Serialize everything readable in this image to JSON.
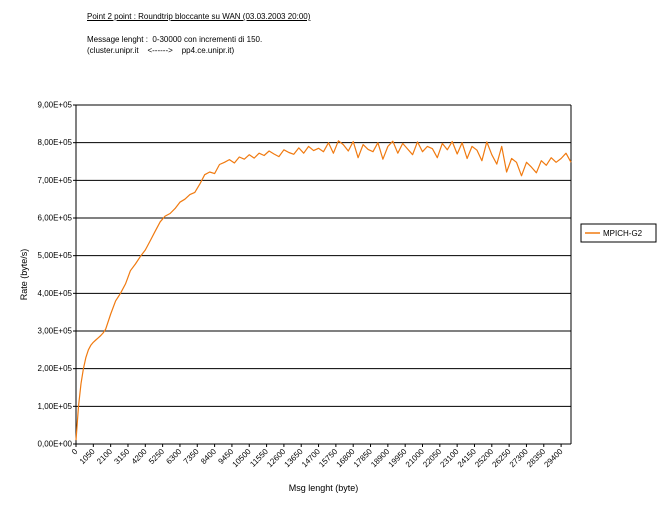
{
  "header": {
    "title": "Point 2 point : Roundtrip bloccante su WAN (03.03.2003 20:00)",
    "line1": "Message lenght :  0-30000 con incrementi di 150.",
    "line2": "(cluster.unipr.it    <------>    pp4.ce.unipr.it)"
  },
  "chart_data": {
    "type": "line",
    "xlabel": "Msg lenght (byte)",
    "ylabel": "Rate (byte/s)",
    "xlim": [
      0,
      30000
    ],
    "ylim": [
      0,
      900000
    ],
    "grid": "horizontal",
    "legend_position": "right",
    "x_tick_labels": [
      "0",
      "1050",
      "2100",
      "3150",
      "4200",
      "5250",
      "6300",
      "7350",
      "8400",
      "9450",
      "10500",
      "11550",
      "12600",
      "13650",
      "14700",
      "15750",
      "16800",
      "17850",
      "18900",
      "19950",
      "21000",
      "22050",
      "23100",
      "24150",
      "25200",
      "26250",
      "27300",
      "28350",
      "29400"
    ],
    "y_tick_labels": [
      "0,00E+00",
      "1,00E+05",
      "2,00E+05",
      "3,00E+05",
      "4,00E+05",
      "5,00E+05",
      "6,00E+05",
      "7,00E+05",
      "8,00E+05",
      "9,00E+05"
    ],
    "series": [
      {
        "name": "MPICH-G2",
        "color": "#f07a10",
        "x": [
          0,
          150,
          300,
          450,
          600,
          750,
          900,
          1050,
          1200,
          1350,
          1500,
          1650,
          1800,
          2100,
          2400,
          2700,
          3000,
          3300,
          3600,
          3900,
          4200,
          4500,
          4800,
          5100,
          5400,
          5700,
          6000,
          6300,
          6600,
          6900,
          7200,
          7500,
          7800,
          8100,
          8400,
          8700,
          9000,
          9300,
          9600,
          9900,
          10200,
          10500,
          10800,
          11100,
          11400,
          11700,
          12000,
          12300,
          12600,
          12900,
          13200,
          13500,
          13800,
          14100,
          14400,
          14700,
          15000,
          15300,
          15600,
          15900,
          16200,
          16500,
          16800,
          17100,
          17400,
          17700,
          18000,
          18300,
          18600,
          18900,
          19200,
          19500,
          19800,
          20100,
          20400,
          20700,
          21000,
          21300,
          21600,
          21900,
          22200,
          22500,
          22800,
          23100,
          23400,
          23700,
          24000,
          24300,
          24600,
          24900,
          25200,
          25500,
          25800,
          26100,
          26400,
          26700,
          27000,
          27300,
          27600,
          27900,
          28200,
          28500,
          28800,
          29100,
          29400,
          29700,
          30000
        ],
        "values": [
          10000,
          100000,
          160000,
          200000,
          230000,
          250000,
          262000,
          270000,
          276000,
          282000,
          288000,
          295000,
          305000,
          345000,
          380000,
          400000,
          425000,
          460000,
          478000,
          498000,
          515000,
          540000,
          565000,
          590000,
          605000,
          612000,
          625000,
          642000,
          650000,
          662000,
          668000,
          690000,
          715000,
          722000,
          718000,
          742000,
          748000,
          755000,
          746000,
          762000,
          756000,
          768000,
          759000,
          772000,
          766000,
          778000,
          770000,
          763000,
          781000,
          774000,
          769000,
          786000,
          772000,
          790000,
          779000,
          785000,
          776000,
          800000,
          772000,
          805000,
          795000,
          778000,
          803000,
          760000,
          795000,
          782000,
          776000,
          800000,
          756000,
          790000,
          804000,
          772000,
          798000,
          783000,
          768000,
          802000,
          776000,
          790000,
          784000,
          760000,
          798000,
          781000,
          803000,
          770000,
          800000,
          758000,
          790000,
          780000,
          752000,
          802000,
          768000,
          743000,
          790000,
          722000,
          758000,
          748000,
          712000,
          748000,
          735000,
          720000,
          752000,
          740000,
          760000,
          748000,
          758000,
          772000,
          748000
        ]
      }
    ]
  }
}
